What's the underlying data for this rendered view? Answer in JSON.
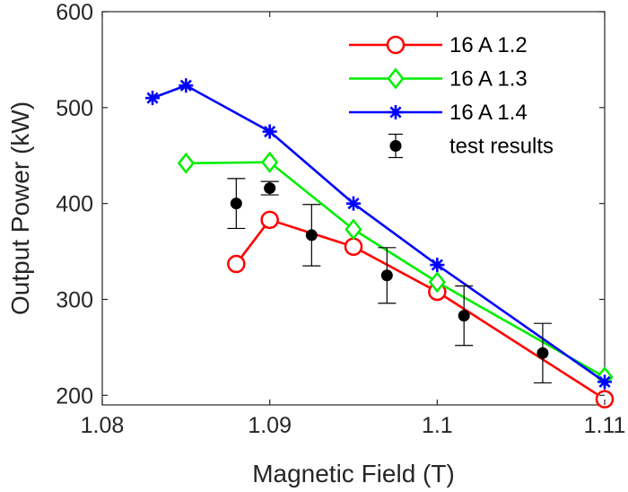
{
  "chart_data": {
    "type": "line",
    "xlabel": "Magnetic Field (T)",
    "ylabel": "Output Power (kW)",
    "xlim": [
      1.08,
      1.11
    ],
    "ylim": [
      190,
      600
    ],
    "x_ticks": [
      1.08,
      1.09,
      1.1,
      1.11
    ],
    "x_tick_labels": [
      "1.08",
      "1.09",
      "1.1",
      "1.11"
    ],
    "y_ticks": [
      200,
      300,
      400,
      500,
      600
    ],
    "y_tick_labels": [
      "200",
      "300",
      "400",
      "500",
      "600"
    ],
    "grid": false,
    "legend_position": "top-right",
    "series": [
      {
        "name": "16 A 1.2",
        "color": "#ff0000",
        "marker": "circle",
        "x": [
          1.088,
          1.09,
          1.095,
          1.1,
          1.11
        ],
        "y": [
          337,
          383,
          355,
          308,
          196
        ]
      },
      {
        "name": "16 A 1.3",
        "color": "#00ee00",
        "marker": "diamond",
        "x": [
          1.085,
          1.09,
          1.095,
          1.1,
          1.11
        ],
        "y": [
          442,
          443,
          373,
          318,
          219
        ]
      },
      {
        "name": "16 A 1.4",
        "color": "#0000ff",
        "marker": "asterisk",
        "x": [
          1.083,
          1.085,
          1.09,
          1.095,
          1.1,
          1.11
        ],
        "y": [
          510,
          523,
          475,
          400,
          336,
          214
        ]
      },
      {
        "name": "test results",
        "color": "#000000",
        "marker": "dot-errorbar",
        "x": [
          1.088,
          1.09,
          1.0925,
          1.097,
          1.1016,
          1.1063
        ],
        "y": [
          400,
          416,
          367,
          325,
          283,
          244
        ],
        "err": [
          26,
          7,
          32,
          29,
          31,
          31
        ]
      }
    ]
  }
}
